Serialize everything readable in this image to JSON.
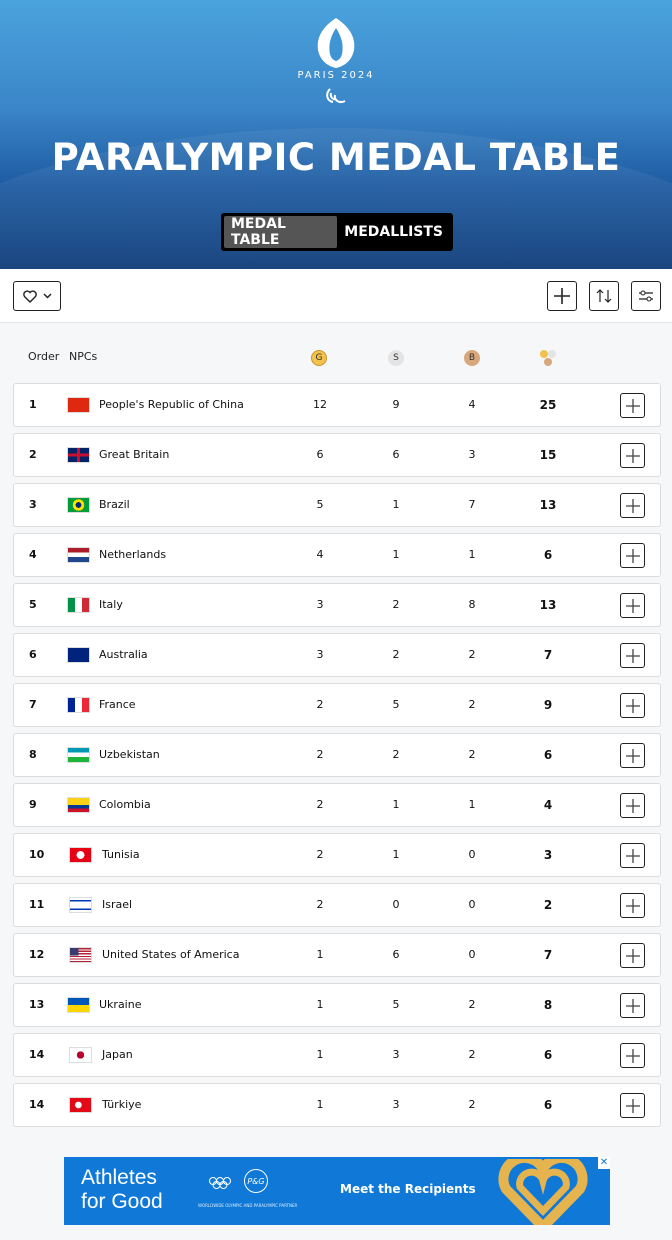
{
  "header": {
    "logo_text": "PARIS 2024",
    "title": "PARALYMPIC MEDAL TABLE",
    "tabs": [
      {
        "label": "MEDAL TABLE",
        "active": true
      },
      {
        "label": "MEDALLISTS",
        "active": false
      }
    ]
  },
  "toolbar": {
    "favorite_icon": "heart-icon",
    "dropdown_icon": "chevron-down-icon",
    "add_icon": "plus-icon",
    "sort_icon": "sort-arrows-icon",
    "filter_icon": "sliders-icon"
  },
  "columns": {
    "order": "Order",
    "npcs": "NPCs",
    "gold": "G",
    "silver": "S",
    "bronze": "B",
    "total_icon": "medals-total-icon"
  },
  "colors": {
    "gold": "#f2c14e",
    "silver": "#e4e4e4",
    "bronze": "#d8a77c",
    "ad_bg": "#1079d8"
  },
  "rows": [
    {
      "order": "1",
      "name": "People's Republic of China",
      "flag": "cn",
      "gold": "12",
      "silver": "9",
      "bronze": "4",
      "total": "25"
    },
    {
      "order": "2",
      "name": "Great Britain",
      "flag": "gb",
      "gold": "6",
      "silver": "6",
      "bronze": "3",
      "total": "15"
    },
    {
      "order": "3",
      "name": "Brazil",
      "flag": "br",
      "gold": "5",
      "silver": "1",
      "bronze": "7",
      "total": "13"
    },
    {
      "order": "4",
      "name": "Netherlands",
      "flag": "nl",
      "gold": "4",
      "silver": "1",
      "bronze": "1",
      "total": "6"
    },
    {
      "order": "5",
      "name": "Italy",
      "flag": "it",
      "gold": "3",
      "silver": "2",
      "bronze": "8",
      "total": "13"
    },
    {
      "order": "6",
      "name": "Australia",
      "flag": "au",
      "gold": "3",
      "silver": "2",
      "bronze": "2",
      "total": "7"
    },
    {
      "order": "7",
      "name": "France",
      "flag": "fr",
      "gold": "2",
      "silver": "5",
      "bronze": "2",
      "total": "9"
    },
    {
      "order": "8",
      "name": "Uzbekistan",
      "flag": "uz",
      "gold": "2",
      "silver": "2",
      "bronze": "2",
      "total": "6"
    },
    {
      "order": "9",
      "name": "Colombia",
      "flag": "co",
      "gold": "2",
      "silver": "1",
      "bronze": "1",
      "total": "4"
    },
    {
      "order": "10",
      "name": "Tunisia",
      "flag": "tn",
      "gold": "2",
      "silver": "1",
      "bronze": "0",
      "total": "3"
    },
    {
      "order": "11",
      "name": "Israel",
      "flag": "il",
      "gold": "2",
      "silver": "0",
      "bronze": "0",
      "total": "2"
    },
    {
      "order": "12",
      "name": "United States of America",
      "flag": "us",
      "gold": "1",
      "silver": "6",
      "bronze": "0",
      "total": "7"
    },
    {
      "order": "13",
      "name": "Ukraine",
      "flag": "ua",
      "gold": "1",
      "silver": "5",
      "bronze": "2",
      "total": "8"
    },
    {
      "order": "14",
      "name": "Japan",
      "flag": "jp",
      "gold": "1",
      "silver": "3",
      "bronze": "2",
      "total": "6"
    },
    {
      "order": "14",
      "name": "Türkiye",
      "flag": "tr",
      "gold": "1",
      "silver": "3",
      "bronze": "2",
      "total": "6"
    }
  ],
  "ad": {
    "headline_1": "Athletes",
    "headline_2": "for Good",
    "partner": "P&G",
    "partner_text": "WORLDWIDE OLYMPIC AND PARALYMPIC PARTNER",
    "cta": "Meet the Recipients",
    "close": "✕"
  }
}
